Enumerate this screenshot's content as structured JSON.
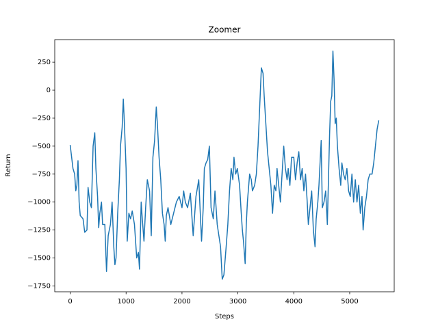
{
  "chart_data": {
    "type": "line",
    "title": "Zoomer",
    "xlabel": "Steps",
    "ylabel": "Return",
    "color": "#1f77b4",
    "x": [
      0,
      50,
      80,
      100,
      120,
      140,
      160,
      180,
      230,
      260,
      300,
      320,
      350,
      380,
      410,
      440,
      460,
      490,
      510,
      530,
      560,
      580,
      620,
      650,
      680,
      720,
      750,
      780,
      800,
      820,
      850,
      880,
      900,
      930,
      950,
      970,
      1000,
      1020,
      1050,
      1080,
      1110,
      1150,
      1190,
      1220,
      1240,
      1270,
      1290,
      1320,
      1350,
      1380,
      1420,
      1450,
      1480,
      1510,
      1540,
      1560,
      1590,
      1620,
      1650,
      1680,
      1700,
      1720,
      1750,
      1800,
      1850,
      1900,
      1950,
      2000,
      2030,
      2060,
      2100,
      2150,
      2200,
      2250,
      2300,
      2350,
      2380,
      2400,
      2430,
      2460,
      2490,
      2520,
      2560,
      2590,
      2630,
      2660,
      2690,
      2720,
      2750,
      2790,
      2820,
      2850,
      2880,
      2910,
      2930,
      2960,
      2990,
      3030,
      3060,
      3080,
      3100,
      3130,
      3150,
      3170,
      3210,
      3240,
      3260,
      3300,
      3330,
      3360,
      3390,
      3420,
      3450,
      3470,
      3500,
      3530,
      3560,
      3590,
      3620,
      3650,
      3680,
      3700,
      3730,
      3760,
      3790,
      3820,
      3850,
      3880,
      3900,
      3930,
      3960,
      4000,
      4030,
      4060,
      4090,
      4120,
      4150,
      4180,
      4210,
      4240,
      4260,
      4290,
      4320,
      4350,
      4380,
      4400,
      4430,
      4450,
      4470,
      4490,
      4510,
      4540,
      4570,
      4600,
      4620,
      4640,
      4660,
      4680,
      4700,
      4720,
      4740,
      4760,
      4780,
      4810,
      4840,
      4860,
      4890,
      4920,
      4950,
      4980,
      5010,
      5040,
      5070,
      5100,
      5130,
      5160,
      5190,
      5220,
      5240,
      5270,
      5300,
      5330,
      5360,
      5400,
      5430,
      5460,
      5490,
      5520
    ],
    "values": [
      -490,
      -700,
      -750,
      -900,
      -850,
      -630,
      -1000,
      -1120,
      -1150,
      -1270,
      -1250,
      -870,
      -1000,
      -1050,
      -500,
      -380,
      -700,
      -950,
      -1230,
      -1100,
      -1000,
      -1200,
      -1200,
      -1620,
      -1300,
      -1200,
      -1000,
      -1400,
      -1560,
      -1500,
      -1100,
      -800,
      -500,
      -330,
      -80,
      -300,
      -700,
      -1350,
      -1100,
      -1150,
      -1080,
      -1200,
      -1500,
      -1450,
      -1600,
      -1000,
      -1150,
      -1350,
      -1050,
      -800,
      -900,
      -1300,
      -600,
      -450,
      -150,
      -300,
      -600,
      -800,
      -1100,
      -1200,
      -1350,
      -1120,
      -1050,
      -1200,
      -1100,
      -1000,
      -950,
      -1050,
      -900,
      -1000,
      -1050,
      -920,
      -1300,
      -950,
      -800,
      -1350,
      -1050,
      -700,
      -650,
      -620,
      -500,
      -1050,
      -1150,
      -900,
      -1200,
      -1300,
      -1400,
      -1690,
      -1650,
      -1400,
      -1200,
      -900,
      -700,
      -800,
      -600,
      -750,
      -700,
      -850,
      -1100,
      -1250,
      -1350,
      -1550,
      -1200,
      -1000,
      -750,
      -800,
      -900,
      -850,
      -750,
      -500,
      -150,
      200,
      150,
      -50,
      -300,
      -550,
      -700,
      -850,
      -1100,
      -850,
      -900,
      -700,
      -850,
      -1000,
      -750,
      -500,
      -700,
      -800,
      -700,
      -850,
      -600,
      -600,
      -800,
      -650,
      -550,
      -800,
      -700,
      -900,
      -750,
      -1000,
      -1200,
      -1050,
      -900,
      -1250,
      -1400,
      -1150,
      -1000,
      -850,
      -650,
      -450,
      -1050,
      -1000,
      -900,
      -1200,
      -800,
      -400,
      -100,
      -50,
      350,
      100,
      -300,
      -250,
      -500,
      -700,
      -850,
      -650,
      -750,
      -800,
      -700,
      -900,
      -950,
      -750,
      -1000,
      -800,
      -1000,
      -850,
      -1100,
      -950,
      -1250,
      -1050,
      -950,
      -800,
      -750,
      -750,
      -650,
      -500,
      -350,
      -270
    ],
    "xlim": [
      -276,
      5796
    ],
    "xticks": [
      0,
      1000,
      2000,
      3000,
      4000,
      5000
    ],
    "ylim": [
      -1802,
      452
    ],
    "yticks": [
      {
        "value": -1750,
        "label": "−1750"
      },
      {
        "value": -1500,
        "label": "−1500"
      },
      {
        "value": -1250,
        "label": "−1250"
      },
      {
        "value": -1000,
        "label": "−1000"
      },
      {
        "value": -750,
        "label": "−750"
      },
      {
        "value": -500,
        "label": "−500"
      },
      {
        "value": -250,
        "label": "−250"
      },
      0,
      250
    ]
  }
}
